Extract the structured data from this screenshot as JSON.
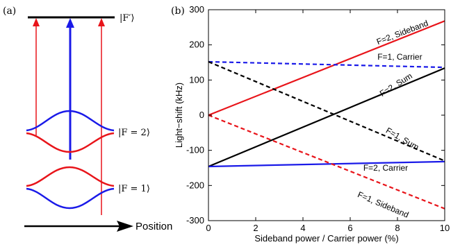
{
  "panel_a": {
    "label": "(a)",
    "levels": {
      "excited": "|F′⟩",
      "upper": "|F = 2⟩",
      "lower": "|F = 1⟩"
    },
    "axis_label": "Position",
    "colors": {
      "red": "#e8141a",
      "blue": "#1a1ae8",
      "black": "#000000"
    }
  },
  "panel_b": {
    "label": "(b)"
  },
  "chart_data": {
    "type": "line",
    "xlabel": "Sideband power / Carrier power (%)",
    "ylabel": "Light−shift (kHz)",
    "xlim": [
      0,
      10
    ],
    "ylim": [
      -300,
      300
    ],
    "xticks": [
      0,
      2,
      4,
      6,
      8,
      10
    ],
    "yticks": [
      -300,
      -200,
      -100,
      0,
      100,
      200,
      300
    ],
    "grid": false,
    "series": [
      {
        "name": "F=2, Sideband",
        "x": [
          0,
          10
        ],
        "y": [
          0,
          268
        ],
        "color": "#e8141a",
        "dash": "solid"
      },
      {
        "name": "F=1, Carrier",
        "x": [
          0,
          10
        ],
        "y": [
          152,
          136
        ],
        "color": "#1a1ae8",
        "dash": "dashed"
      },
      {
        "name": "F=2, Sum",
        "x": [
          0,
          10
        ],
        "y": [
          -146,
          134
        ],
        "color": "#000000",
        "dash": "solid"
      },
      {
        "name": "F=1, Sum",
        "x": [
          0,
          10
        ],
        "y": [
          152,
          -130
        ],
        "color": "#000000",
        "dash": "dashed"
      },
      {
        "name": "F=2, Carrier",
        "x": [
          0,
          10
        ],
        "y": [
          -146,
          -132
        ],
        "color": "#1a1ae8",
        "dash": "solid"
      },
      {
        "name": "F=1, Sideband",
        "x": [
          0,
          10
        ],
        "y": [
          0,
          -266
        ],
        "color": "#e8141a",
        "dash": "dashed"
      }
    ]
  }
}
